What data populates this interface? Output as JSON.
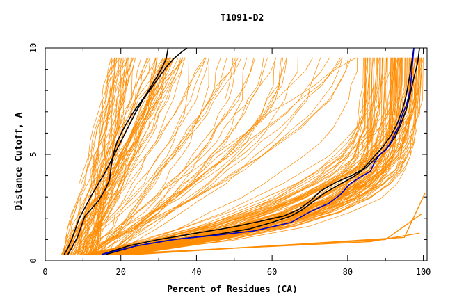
{
  "chart_data": {
    "type": "line",
    "title": "T1091-D2",
    "xlabel": "Percent of Residues (CA)",
    "ylabel": "Distance Cutoff, A",
    "xlim": [
      0,
      101
    ],
    "ylim": [
      0,
      10
    ],
    "x_ticks": [
      0,
      20,
      40,
      60,
      80,
      100
    ],
    "y_ticks": [
      0,
      5,
      10
    ],
    "x_tick_labels": [
      "0",
      "20",
      "40",
      "60",
      "80",
      "100"
    ],
    "y_tick_labels": [
      "0",
      "5",
      "10"
    ],
    "grid": false,
    "legend": "none",
    "colors": {
      "models": "#ff8c00",
      "highlight": "#000000",
      "reference": "#0000cc"
    },
    "series": [
      {
        "color": "#000000",
        "x": [
          6,
          7,
          8.5,
          9.5,
          10.5,
          12,
          14,
          16,
          17,
          17.5,
          18,
          19,
          21,
          23,
          25,
          27,
          29,
          31,
          32,
          32.5
        ],
        "y": [
          0.3,
          0.6,
          1.1,
          1.6,
          2.1,
          2.4,
          2.8,
          3.4,
          3.8,
          4.5,
          5.0,
          5.6,
          6.3,
          6.9,
          7.4,
          7.9,
          8.5,
          9.1,
          9.5,
          10.0
        ]
      },
      {
        "color": "#000000",
        "x": [
          5,
          6,
          7,
          8,
          9,
          10.5,
          12,
          14,
          16,
          18,
          20,
          22,
          24,
          26,
          28,
          30,
          32,
          34,
          36,
          37.5
        ],
        "y": [
          0.3,
          0.6,
          1.0,
          1.5,
          2.0,
          2.5,
          3.0,
          3.6,
          4.2,
          4.9,
          5.6,
          6.3,
          7.0,
          7.6,
          8.1,
          8.6,
          9.1,
          9.5,
          9.8,
          10.0
        ]
      },
      {
        "color": "#000000",
        "x": [
          15,
          22,
          30,
          40,
          50,
          58,
          63,
          67,
          70,
          73,
          77,
          81,
          84,
          87,
          89.5,
          91.5,
          93,
          94.5,
          95.5,
          96.5,
          97.5
        ],
        "y": [
          0.3,
          0.7,
          1.0,
          1.3,
          1.6,
          1.9,
          2.1,
          2.4,
          2.8,
          3.3,
          3.7,
          4.0,
          4.3,
          4.9,
          5.4,
          5.9,
          6.4,
          7.1,
          7.8,
          8.8,
          10.0
        ]
      },
      {
        "color": "#000000",
        "x": [
          16,
          24,
          34,
          44,
          54,
          60,
          65,
          68,
          71,
          74,
          78,
          82,
          85,
          88,
          90.5,
          92.5,
          94,
          95.5,
          96.5,
          97.5,
          98.5,
          99
        ],
        "y": [
          0.3,
          0.7,
          1.0,
          1.2,
          1.5,
          1.8,
          2.1,
          2.4,
          2.8,
          3.2,
          3.6,
          4.0,
          4.4,
          4.9,
          5.3,
          5.8,
          6.4,
          7.1,
          7.8,
          8.6,
          9.3,
          10.0
        ]
      },
      {
        "color": "#0000cc",
        "x": [
          15,
          24,
          34,
          45,
          55,
          65,
          70,
          75,
          78,
          80.5,
          83,
          86,
          87,
          88.5,
          90,
          91.5,
          92.5,
          93.5,
          94.5,
          95.5,
          96.5,
          97,
          97.5
        ],
        "y": [
          0.3,
          0.7,
          1.0,
          1.2,
          1.4,
          1.8,
          2.3,
          2.7,
          3.1,
          3.6,
          3.9,
          4.2,
          4.6,
          5.0,
          5.2,
          5.6,
          6.0,
          6.3,
          6.9,
          7.3,
          8.0,
          9.0,
          10.0
        ]
      }
    ]
  }
}
